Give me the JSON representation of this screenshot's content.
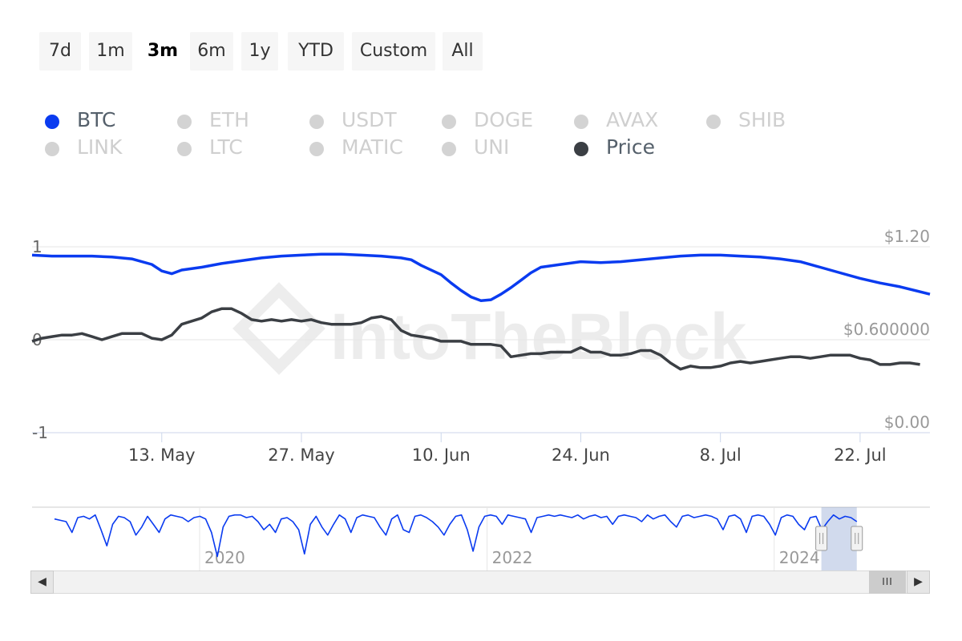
{
  "range_buttons": [
    {
      "label": "7d",
      "active": false
    },
    {
      "label": "1m",
      "active": false
    },
    {
      "label": "3m",
      "active": true
    },
    {
      "label": "6m",
      "active": false
    },
    {
      "label": "1y",
      "active": false
    },
    {
      "label": "YTD",
      "active": false
    },
    {
      "label": "Custom",
      "active": false
    },
    {
      "label": "All",
      "active": false
    }
  ],
  "legend": [
    {
      "label": "BTC",
      "active": true,
      "color": "#0a3bf0"
    },
    {
      "label": "ETH",
      "active": false,
      "color": "#d3d3d3"
    },
    {
      "label": "USDT",
      "active": false,
      "color": "#d3d3d3"
    },
    {
      "label": "DOGE",
      "active": false,
      "color": "#d3d3d3"
    },
    {
      "label": "AVAX",
      "active": false,
      "color": "#d3d3d3"
    },
    {
      "label": "SHIB",
      "active": false,
      "color": "#d3d3d3"
    },
    {
      "label": "LINK",
      "active": false,
      "color": "#d3d3d3"
    },
    {
      "label": "LTC",
      "active": false,
      "color": "#d3d3d3"
    },
    {
      "label": "MATIC",
      "active": false,
      "color": "#d3d3d3"
    },
    {
      "label": "UNI",
      "active": false,
      "color": "#d3d3d3"
    },
    {
      "label": "Price",
      "active": true,
      "color": "#3b3f44"
    }
  ],
  "watermark": "IntoTheBlock",
  "chart_data": {
    "type": "line",
    "x_start": "2024-04-30",
    "x_end": "2024-07-29",
    "x_ticks": [
      "13. May",
      "27. May",
      "10. Jun",
      "24. Jun",
      "8. Jul",
      "22. Jul"
    ],
    "x_tick_dates": [
      "2024-05-13",
      "2024-05-27",
      "2024-06-10",
      "2024-06-24",
      "2024-07-08",
      "2024-07-22"
    ],
    "y_left": {
      "ticks": [
        "1",
        "0",
        "-1"
      ],
      "range": [
        -1,
        1
      ]
    },
    "y_right": {
      "ticks": [
        "$1.20",
        "$0.600000",
        "$0.00"
      ],
      "range": [
        0,
        1.2
      ]
    },
    "grid": true,
    "legend_position": "top-left",
    "series": [
      {
        "name": "BTC",
        "axis": "left",
        "color": "#0a3bf0",
        "points": [
          [
            "2024-04-30",
            0.91
          ],
          [
            "2024-05-02",
            0.9
          ],
          [
            "2024-05-04",
            0.9
          ],
          [
            "2024-05-06",
            0.9
          ],
          [
            "2024-05-08",
            0.89
          ],
          [
            "2024-05-10",
            0.87
          ],
          [
            "2024-05-12",
            0.81
          ],
          [
            "2024-05-13",
            0.74
          ],
          [
            "2024-05-14",
            0.71
          ],
          [
            "2024-05-15",
            0.75
          ],
          [
            "2024-05-17",
            0.78
          ],
          [
            "2024-05-19",
            0.82
          ],
          [
            "2024-05-21",
            0.85
          ],
          [
            "2024-05-23",
            0.88
          ],
          [
            "2024-05-25",
            0.9
          ],
          [
            "2024-05-27",
            0.91
          ],
          [
            "2024-05-29",
            0.92
          ],
          [
            "2024-05-31",
            0.92
          ],
          [
            "2024-06-02",
            0.91
          ],
          [
            "2024-06-04",
            0.9
          ],
          [
            "2024-06-06",
            0.88
          ],
          [
            "2024-06-07",
            0.86
          ],
          [
            "2024-06-08",
            0.8
          ],
          [
            "2024-06-10",
            0.7
          ],
          [
            "2024-06-11",
            0.61
          ],
          [
            "2024-06-12",
            0.53
          ],
          [
            "2024-06-13",
            0.46
          ],
          [
            "2024-06-14",
            0.42
          ],
          [
            "2024-06-15",
            0.43
          ],
          [
            "2024-06-16",
            0.49
          ],
          [
            "2024-06-17",
            0.56
          ],
          [
            "2024-06-18",
            0.64
          ],
          [
            "2024-06-19",
            0.72
          ],
          [
            "2024-06-20",
            0.78
          ],
          [
            "2024-06-22",
            0.81
          ],
          [
            "2024-06-24",
            0.84
          ],
          [
            "2024-06-26",
            0.83
          ],
          [
            "2024-06-28",
            0.84
          ],
          [
            "2024-06-30",
            0.86
          ],
          [
            "2024-07-02",
            0.88
          ],
          [
            "2024-07-04",
            0.9
          ],
          [
            "2024-07-06",
            0.91
          ],
          [
            "2024-07-08",
            0.91
          ],
          [
            "2024-07-10",
            0.9
          ],
          [
            "2024-07-12",
            0.89
          ],
          [
            "2024-07-14",
            0.87
          ],
          [
            "2024-07-16",
            0.84
          ],
          [
            "2024-07-18",
            0.78
          ],
          [
            "2024-07-20",
            0.72
          ],
          [
            "2024-07-22",
            0.66
          ],
          [
            "2024-07-24",
            0.61
          ],
          [
            "2024-07-26",
            0.57
          ],
          [
            "2024-07-29",
            0.49
          ]
        ]
      },
      {
        "name": "Price",
        "axis": "right",
        "color": "#3b3f44",
        "points": [
          [
            "2024-04-30",
            0.59
          ],
          [
            "2024-05-01",
            0.61
          ],
          [
            "2024-05-02",
            0.62
          ],
          [
            "2024-05-03",
            0.63
          ],
          [
            "2024-05-04",
            0.63
          ],
          [
            "2024-05-05",
            0.64
          ],
          [
            "2024-05-06",
            0.62
          ],
          [
            "2024-05-07",
            0.6
          ],
          [
            "2024-05-08",
            0.62
          ],
          [
            "2024-05-09",
            0.64
          ],
          [
            "2024-05-10",
            0.64
          ],
          [
            "2024-05-11",
            0.64
          ],
          [
            "2024-05-12",
            0.61
          ],
          [
            "2024-05-13",
            0.6
          ],
          [
            "2024-05-14",
            0.63
          ],
          [
            "2024-05-15",
            0.7
          ],
          [
            "2024-05-16",
            0.72
          ],
          [
            "2024-05-17",
            0.74
          ],
          [
            "2024-05-18",
            0.78
          ],
          [
            "2024-05-19",
            0.8
          ],
          [
            "2024-05-20",
            0.8
          ],
          [
            "2024-05-21",
            0.77
          ],
          [
            "2024-05-22",
            0.73
          ],
          [
            "2024-05-23",
            0.72
          ],
          [
            "2024-05-24",
            0.73
          ],
          [
            "2024-05-25",
            0.72
          ],
          [
            "2024-05-26",
            0.73
          ],
          [
            "2024-05-27",
            0.72
          ],
          [
            "2024-05-28",
            0.73
          ],
          [
            "2024-05-29",
            0.71
          ],
          [
            "2024-05-30",
            0.7
          ],
          [
            "2024-05-31",
            0.7
          ],
          [
            "2024-06-01",
            0.7
          ],
          [
            "2024-06-02",
            0.71
          ],
          [
            "2024-06-03",
            0.74
          ],
          [
            "2024-06-04",
            0.75
          ],
          [
            "2024-06-05",
            0.73
          ],
          [
            "2024-06-06",
            0.66
          ],
          [
            "2024-06-07",
            0.63
          ],
          [
            "2024-06-08",
            0.62
          ],
          [
            "2024-06-09",
            0.61
          ],
          [
            "2024-06-10",
            0.59
          ],
          [
            "2024-06-11",
            0.59
          ],
          [
            "2024-06-12",
            0.59
          ],
          [
            "2024-06-13",
            0.57
          ],
          [
            "2024-06-14",
            0.57
          ],
          [
            "2024-06-15",
            0.57
          ],
          [
            "2024-06-16",
            0.56
          ],
          [
            "2024-06-17",
            0.49
          ],
          [
            "2024-06-18",
            0.5
          ],
          [
            "2024-06-19",
            0.51
          ],
          [
            "2024-06-20",
            0.51
          ],
          [
            "2024-06-21",
            0.52
          ],
          [
            "2024-06-22",
            0.52
          ],
          [
            "2024-06-23",
            0.52
          ],
          [
            "2024-06-24",
            0.55
          ],
          [
            "2024-06-25",
            0.52
          ],
          [
            "2024-06-26",
            0.52
          ],
          [
            "2024-06-27",
            0.5
          ],
          [
            "2024-06-28",
            0.5
          ],
          [
            "2024-06-29",
            0.51
          ],
          [
            "2024-06-30",
            0.53
          ],
          [
            "2024-07-01",
            0.53
          ],
          [
            "2024-07-02",
            0.5
          ],
          [
            "2024-07-03",
            0.45
          ],
          [
            "2024-07-04",
            0.41
          ],
          [
            "2024-07-05",
            0.43
          ],
          [
            "2024-07-06",
            0.42
          ],
          [
            "2024-07-07",
            0.42
          ],
          [
            "2024-07-08",
            0.43
          ],
          [
            "2024-07-09",
            0.45
          ],
          [
            "2024-07-10",
            0.46
          ],
          [
            "2024-07-11",
            0.45
          ],
          [
            "2024-07-12",
            0.46
          ],
          [
            "2024-07-13",
            0.47
          ],
          [
            "2024-07-14",
            0.48
          ],
          [
            "2024-07-15",
            0.49
          ],
          [
            "2024-07-16",
            0.49
          ],
          [
            "2024-07-17",
            0.48
          ],
          [
            "2024-07-18",
            0.49
          ],
          [
            "2024-07-19",
            0.5
          ],
          [
            "2024-07-20",
            0.5
          ],
          [
            "2024-07-21",
            0.5
          ],
          [
            "2024-07-22",
            0.48
          ],
          [
            "2024-07-23",
            0.47
          ],
          [
            "2024-07-24",
            0.44
          ],
          [
            "2024-07-25",
            0.44
          ],
          [
            "2024-07-26",
            0.45
          ],
          [
            "2024-07-27",
            0.45
          ],
          [
            "2024-07-28",
            0.44
          ]
        ]
      }
    ]
  },
  "navigator": {
    "type": "line",
    "color": "#0a3bf0",
    "x_start": "2018-11-01",
    "x_end": "2025-01-31",
    "labels": [
      {
        "text": "2020",
        "date": "2020-01-01"
      },
      {
        "text": "2022",
        "date": "2022-01-01"
      },
      {
        "text": "2024",
        "date": "2024-01-01"
      }
    ],
    "selected_range": [
      "2024-04-30",
      "2024-07-29"
    ],
    "values": [
      0.8,
      0.75,
      0.7,
      0.3,
      0.85,
      0.9,
      0.8,
      0.95,
      0.4,
      -0.2,
      0.6,
      0.9,
      0.85,
      0.7,
      0.2,
      0.5,
      0.9,
      0.6,
      0.3,
      0.8,
      0.95,
      0.9,
      0.85,
      0.7,
      0.85,
      0.9,
      0.8,
      0.3,
      -0.6,
      0.5,
      0.9,
      0.95,
      0.95,
      0.85,
      0.9,
      0.7,
      0.4,
      0.6,
      0.3,
      0.8,
      0.85,
      0.7,
      0.4,
      -0.5,
      0.6,
      0.9,
      0.5,
      0.2,
      0.6,
      0.95,
      0.8,
      0.3,
      0.85,
      0.95,
      0.9,
      0.85,
      0.5,
      0.2,
      0.8,
      0.95,
      0.4,
      0.3,
      0.9,
      0.95,
      0.85,
      0.7,
      0.5,
      0.2,
      0.6,
      0.9,
      0.95,
      0.4,
      -0.4,
      0.5,
      0.9,
      0.95,
      0.9,
      0.6,
      0.95,
      0.9,
      0.85,
      0.8,
      0.3,
      0.85,
      0.9,
      0.95,
      0.9,
      0.95,
      0.9,
      0.85,
      0.95,
      0.8,
      0.9,
      0.95,
      0.85,
      0.9,
      0.6,
      0.9,
      0.95,
      0.9,
      0.85,
      0.7,
      0.95,
      0.8,
      0.9,
      0.95,
      0.7,
      0.5,
      0.9,
      0.95,
      0.85,
      0.9,
      0.95,
      0.9,
      0.8,
      0.4,
      0.9,
      0.95,
      0.8,
      0.3,
      0.9,
      0.95,
      0.9,
      0.6,
      0.2,
      0.85,
      0.95,
      0.9,
      0.6,
      0.4,
      0.85,
      0.9,
      0.4,
      0.7,
      0.95,
      0.8,
      0.9,
      0.85,
      0.7
    ]
  },
  "scrollbar": {
    "left_arrow": "◀",
    "right_arrow": "▶",
    "thumb_grip": "III"
  }
}
